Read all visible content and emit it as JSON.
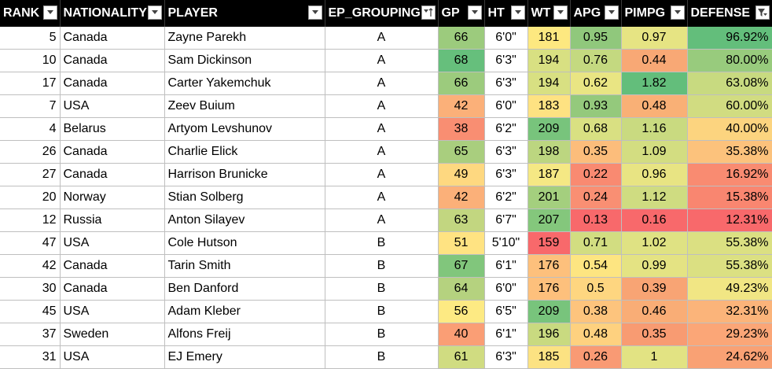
{
  "columns": [
    {
      "key": "rank",
      "label": "RANK",
      "filter_icon": "dropdown-arrow-icon"
    },
    {
      "key": "nationality",
      "label": "NATIONALITY",
      "filter_icon": "dropdown-arrow-icon"
    },
    {
      "key": "player",
      "label": "PLAYER",
      "filter_icon": "dropdown-arrow-icon"
    },
    {
      "key": "ep_grouping",
      "label": "EP_GROUPING",
      "filter_icon": "sort-ascending-icon"
    },
    {
      "key": "gp",
      "label": "GP",
      "filter_icon": "dropdown-arrow-icon"
    },
    {
      "key": "ht",
      "label": "HT",
      "filter_icon": "dropdown-arrow-icon"
    },
    {
      "key": "wt",
      "label": "WT",
      "filter_icon": "dropdown-arrow-icon"
    },
    {
      "key": "apg",
      "label": "APG",
      "filter_icon": "dropdown-arrow-icon"
    },
    {
      "key": "pimpg",
      "label": "PIMPG",
      "filter_icon": "dropdown-arrow-icon"
    },
    {
      "key": "defense",
      "label": "DEFENSE",
      "filter_icon": "filter-applied-icon"
    }
  ],
  "rows": [
    {
      "rank": "5",
      "nationality": "Canada",
      "player": "Zayne Parekh",
      "ep_grouping": "A",
      "gp": "66",
      "ht": "6'0\"",
      "wt": "181",
      "apg": "0.95",
      "pimpg": "0.97",
      "defense": "96.92%",
      "colors": {
        "gp": "#9ccb7d",
        "wt": "#fde880",
        "apg": "#90c87c",
        "pimpg": "#e6e483",
        "defense": "#63be7b"
      }
    },
    {
      "rank": "10",
      "nationality": "Canada",
      "player": "Sam Dickinson",
      "ep_grouping": "A",
      "gp": "68",
      "ht": "6'3\"",
      "wt": "194",
      "apg": "0.76",
      "pimpg": "0.44",
      "defense": "80.00%",
      "colors": {
        "gp": "#66bf7c",
        "wt": "#d8e082",
        "apg": "#c4d980",
        "pimpg": "#f8a875",
        "defense": "#98cb7d"
      }
    },
    {
      "rank": "17",
      "nationality": "Canada",
      "player": "Carter Yakemchuk",
      "ep_grouping": "A",
      "gp": "66",
      "ht": "6'3\"",
      "wt": "194",
      "apg": "0.62",
      "pimpg": "1.82",
      "defense": "63.08%",
      "colors": {
        "gp": "#9ccb7d",
        "wt": "#d8e082",
        "apg": "#e9e583",
        "pimpg": "#63be7b",
        "defense": "#c8da80"
      }
    },
    {
      "rank": "7",
      "nationality": "USA",
      "player": "Zeev Buium",
      "ep_grouping": "A",
      "gp": "42",
      "ht": "6'0\"",
      "wt": "183",
      "apg": "0.93",
      "pimpg": "0.48",
      "defense": "60.00%",
      "colors": {
        "gp": "#fbb079",
        "wt": "#fee282",
        "apg": "#94c97c",
        "pimpg": "#f9b076",
        "defense": "#d1dc81"
      }
    },
    {
      "rank": "4",
      "nationality": "Belarus",
      "player": "Artyom Levshunov",
      "ep_grouping": "A",
      "gp": "38",
      "ht": "6'2\"",
      "wt": "209",
      "apg": "0.68",
      "pimpg": "1.16",
      "defense": "40.00%",
      "colors": {
        "gp": "#f98e72",
        "wt": "#78c47c",
        "apg": "#d9e082",
        "pimpg": "#c9da80",
        "defense": "#fcd47f"
      }
    },
    {
      "rank": "26",
      "nationality": "Canada",
      "player": "Charlie Elick",
      "ep_grouping": "A",
      "gp": "65",
      "ht": "6'3\"",
      "wt": "198",
      "apg": "0.35",
      "pimpg": "1.09",
      "defense": "35.38%",
      "colors": {
        "gp": "#a9ce7e",
        "wt": "#bcd680",
        "apg": "#fcbd7b",
        "pimpg": "#d3dd81",
        "defense": "#fcc27c"
      }
    },
    {
      "rank": "27",
      "nationality": "Canada",
      "player": "Harrison Brunicke",
      "ep_grouping": "A",
      "gp": "49",
      "ht": "6'3\"",
      "wt": "187",
      "apg": "0.22",
      "pimpg": "0.96",
      "defense": "16.92%",
      "colors": {
        "gp": "#fed880",
        "wt": "#f5e884",
        "apg": "#f98a71",
        "pimpg": "#e8e483",
        "defense": "#f98b71"
      }
    },
    {
      "rank": "20",
      "nationality": "Norway",
      "player": "Stian Solberg",
      "ep_grouping": "A",
      "gp": "42",
      "ht": "6'2\"",
      "wt": "201",
      "apg": "0.24",
      "pimpg": "1.12",
      "defense": "15.38%",
      "colors": {
        "gp": "#fbb079",
        "wt": "#a4cf7e",
        "apg": "#f98f73",
        "pimpg": "#cfdc81",
        "defense": "#f98670"
      }
    },
    {
      "rank": "12",
      "nationality": "Russia",
      "player": "Anton Silayev",
      "ep_grouping": "A",
      "gp": "63",
      "ht": "6'7\"",
      "wt": "207",
      "apg": "0.13",
      "pimpg": "0.16",
      "defense": "12.31%",
      "colors": {
        "gp": "#c2d680",
        "wt": "#84c77c",
        "apg": "#f8696b",
        "pimpg": "#f8696b",
        "defense": "#f8696b"
      }
    },
    {
      "rank": "47",
      "nationality": "USA",
      "player": "Cole Hutson",
      "ep_grouping": "B",
      "gp": "51",
      "ht": "5'10\"",
      "wt": "159",
      "apg": "0.71",
      "pimpg": "1.02",
      "defense": "55.38%",
      "colors": {
        "gp": "#ffe382",
        "wt": "#f8696b",
        "apg": "#d2dd81",
        "pimpg": "#dfe283",
        "defense": "#dbe082"
      }
    },
    {
      "rank": "42",
      "nationality": "Canada",
      "player": "Tarin Smith",
      "ep_grouping": "B",
      "gp": "67",
      "ht": "6'1\"",
      "wt": "176",
      "apg": "0.54",
      "pimpg": "0.99",
      "defense": "55.38%",
      "colors": {
        "gp": "#81c67c",
        "wt": "#fdc07c",
        "apg": "#fde581",
        "pimpg": "#e4e383",
        "defense": "#dbe082"
      }
    },
    {
      "rank": "30",
      "nationality": "Canada",
      "player": "Ben Danford",
      "ep_grouping": "B",
      "gp": "64",
      "ht": "6'0\"",
      "wt": "176",
      "apg": "0.5",
      "pimpg": "0.39",
      "defense": "49.23%",
      "colors": {
        "gp": "#b5d27f",
        "wt": "#fdc07c",
        "apg": "#fed680",
        "pimpg": "#f8a474",
        "defense": "#f1e684"
      }
    },
    {
      "rank": "45",
      "nationality": "USA",
      "player": "Adam Kleber",
      "ep_grouping": "B",
      "gp": "56",
      "ht": "6'5\"",
      "wt": "209",
      "apg": "0.38",
      "pimpg": "0.46",
      "defense": "32.31%",
      "colors": {
        "gp": "#fdea83",
        "wt": "#78c47c",
        "apg": "#fdc47d",
        "pimpg": "#f9ad76",
        "defense": "#fbb47a"
      }
    },
    {
      "rank": "37",
      "nationality": "Sweden",
      "player": "Alfons Freij",
      "ep_grouping": "B",
      "gp": "40",
      "ht": "6'1\"",
      "wt": "196",
      "apg": "0.48",
      "pimpg": "0.35",
      "defense": "29.23%",
      "colors": {
        "gp": "#fa9e75",
        "wt": "#c9da80",
        "apg": "#fed17f",
        "pimpg": "#f89b72",
        "defense": "#fba677"
      }
    },
    {
      "rank": "31",
      "nationality": "USA",
      "player": "EJ Emery",
      "ep_grouping": "B",
      "gp": "61",
      "ht": "6'3\"",
      "wt": "185",
      "apg": "0.26",
      "pimpg": "1",
      "defense": "24.62%",
      "colors": {
        "gp": "#d0dc81",
        "wt": "#fce282",
        "apg": "#f99a74",
        "pimpg": "#e2e383",
        "defense": "#f9a174"
      }
    }
  ]
}
